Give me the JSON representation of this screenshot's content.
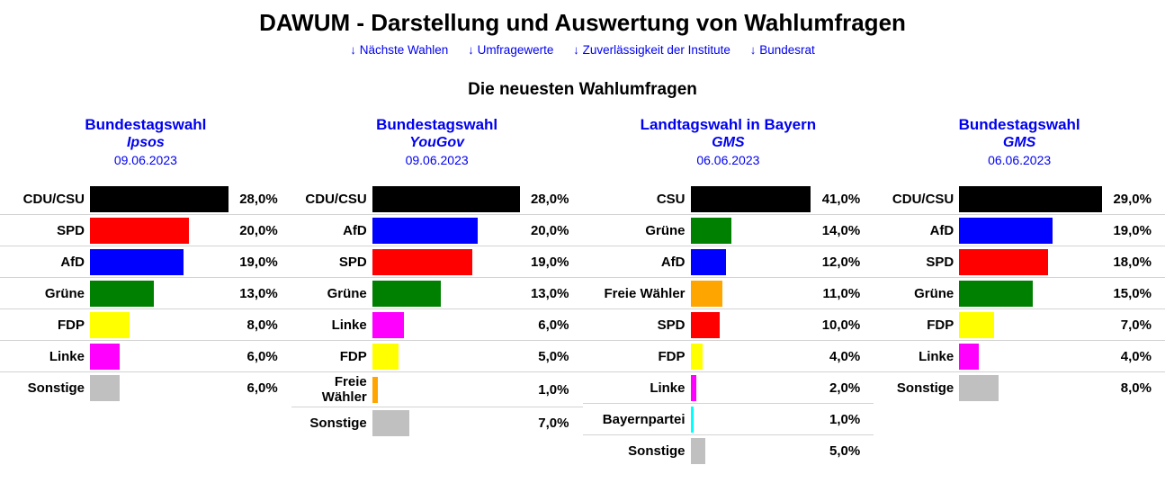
{
  "page": {
    "title": "DAWUM - Darstellung und Auswertung von Wahlumfragen",
    "section_title": "Die neuesten Wahlumfragen"
  },
  "nav": {
    "links": [
      {
        "label": "↓ Nächste Wahlen"
      },
      {
        "label": "↓ Umfragewerte"
      },
      {
        "label": "↓ Zuverlässigkeit der Institute"
      },
      {
        "label": "↓ Bundesrat"
      }
    ]
  },
  "colors": {
    "link_blue": "#0000EE",
    "row_separator": "#d3d3d3",
    "parties": {
      "CDU/CSU": "#000000",
      "CSU": "#000000",
      "SPD": "#ff0000",
      "AfD": "#0000ff",
      "Grüne": "#008000",
      "FDP": "#ffff00",
      "Linke": "#ff00ff",
      "Freie Wähler": "#ffa500",
      "Bayernpartei": "#00ffff",
      "Sonstige": "#c0c0c0"
    }
  },
  "chart_data": [
    {
      "type": "bar",
      "orientation": "horizontal",
      "title": "Bundestagswahl",
      "institute": "Ipsos",
      "date": "09.06.2023",
      "unit": "%",
      "scale": "bars scaled so the maximum value fills the bar area",
      "categories": [
        "CDU/CSU",
        "SPD",
        "AfD",
        "Grüne",
        "FDP",
        "Linke",
        "Sonstige"
      ],
      "values": [
        28.0,
        20.0,
        19.0,
        13.0,
        8.0,
        6.0,
        6.0
      ],
      "value_labels": [
        "28,0%",
        "20,0%",
        "19,0%",
        "13,0%",
        "8,0%",
        "6,0%",
        "6,0%"
      ],
      "bar_colors": [
        "#000000",
        "#ff0000",
        "#0000ff",
        "#008000",
        "#ffff00",
        "#ff00ff",
        "#c0c0c0"
      ]
    },
    {
      "type": "bar",
      "orientation": "horizontal",
      "title": "Bundestagswahl",
      "institute": "YouGov",
      "date": "09.06.2023",
      "unit": "%",
      "scale": "bars scaled so the maximum value fills the bar area",
      "categories": [
        "CDU/CSU",
        "AfD",
        "SPD",
        "Grüne",
        "Linke",
        "FDP",
        "Freie Wähler",
        "Sonstige"
      ],
      "values": [
        28.0,
        20.0,
        19.0,
        13.0,
        6.0,
        5.0,
        1.0,
        7.0
      ],
      "value_labels": [
        "28,0%",
        "20,0%",
        "19,0%",
        "13,0%",
        "6,0%",
        "5,0%",
        "1,0%",
        "7,0%"
      ],
      "bar_colors": [
        "#000000",
        "#0000ff",
        "#ff0000",
        "#008000",
        "#ff00ff",
        "#ffff00",
        "#ffa500",
        "#c0c0c0"
      ]
    },
    {
      "type": "bar",
      "orientation": "horizontal",
      "title": "Landtagswahl in Bayern",
      "institute": "GMS",
      "date": "06.06.2023",
      "unit": "%",
      "scale": "bars scaled so the maximum value fills the bar area",
      "categories": [
        "CSU",
        "Grüne",
        "AfD",
        "Freie Wähler",
        "SPD",
        "FDP",
        "Linke",
        "Bayernpartei",
        "Sonstige"
      ],
      "values": [
        41.0,
        14.0,
        12.0,
        11.0,
        10.0,
        4.0,
        2.0,
        1.0,
        5.0
      ],
      "value_labels": [
        "41,0%",
        "14,0%",
        "12,0%",
        "11,0%",
        "10,0%",
        "4,0%",
        "2,0%",
        "1,0%",
        "5,0%"
      ],
      "bar_colors": [
        "#000000",
        "#008000",
        "#0000ff",
        "#ffa500",
        "#ff0000",
        "#ffff00",
        "#ff00ff",
        "#00ffff",
        "#c0c0c0"
      ]
    },
    {
      "type": "bar",
      "orientation": "horizontal",
      "title": "Bundestagswahl",
      "institute": "GMS",
      "date": "06.06.2023",
      "unit": "%",
      "scale": "bars scaled so the maximum value fills the bar area",
      "categories": [
        "CDU/CSU",
        "AfD",
        "SPD",
        "Grüne",
        "FDP",
        "Linke",
        "Sonstige"
      ],
      "values": [
        29.0,
        19.0,
        18.0,
        15.0,
        7.0,
        4.0,
        8.0
      ],
      "value_labels": [
        "29,0%",
        "19,0%",
        "18,0%",
        "15,0%",
        "7,0%",
        "4,0%",
        "8,0%"
      ],
      "bar_colors": [
        "#000000",
        "#0000ff",
        "#ff0000",
        "#008000",
        "#ffff00",
        "#ff00ff",
        "#c0c0c0"
      ]
    }
  ]
}
